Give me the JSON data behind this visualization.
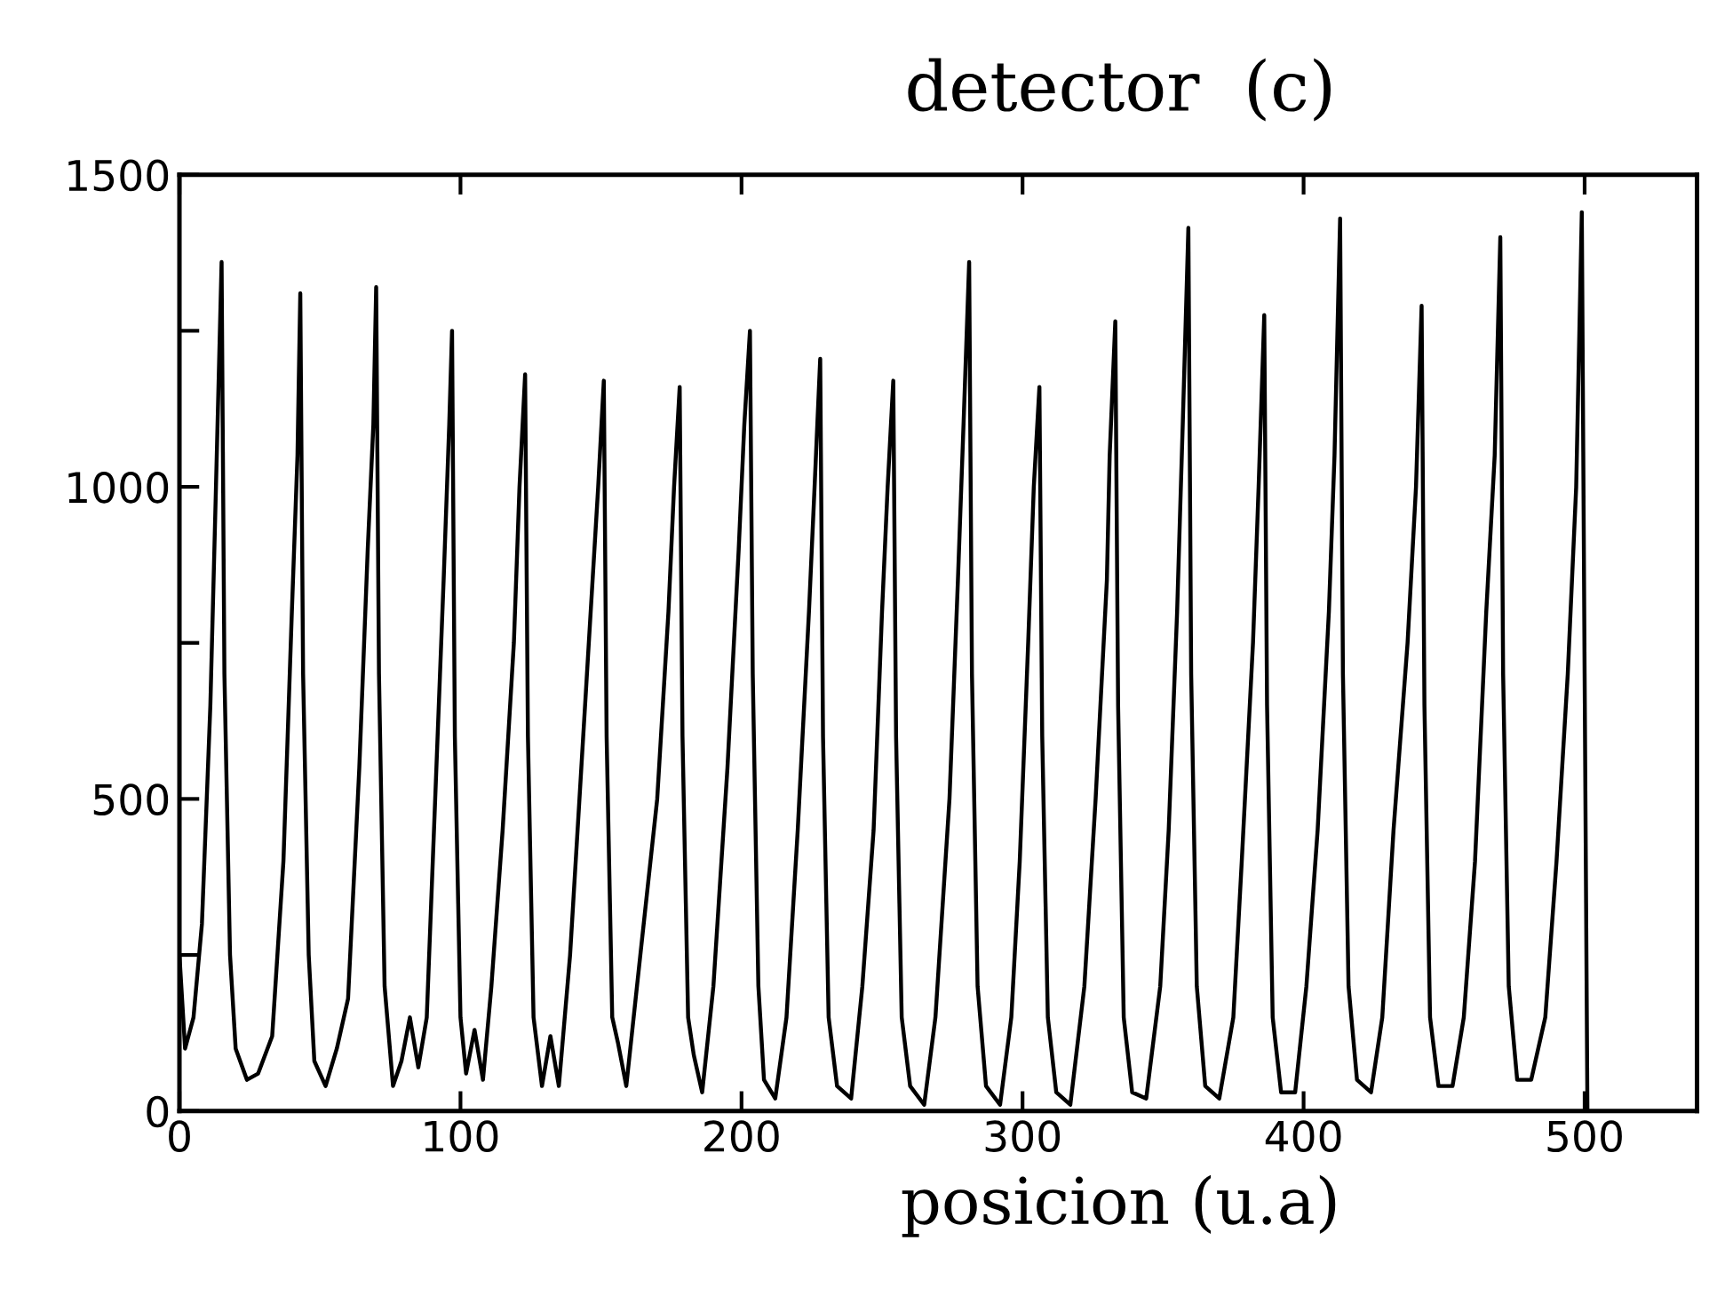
{
  "chart_data": {
    "type": "line",
    "title": "detector  (c)",
    "xlabel": "posicion (u.a)",
    "xlim": [
      0,
      540
    ],
    "ylim": [
      0,
      1500
    ],
    "xticks": [
      0,
      100,
      200,
      300,
      400,
      500
    ],
    "yticks": [
      0,
      {
        "value": 250,
        "label": null
      },
      500,
      {
        "value": 750,
        "label": null
      },
      1000,
      {
        "value": 1250,
        "label": null
      },
      1500
    ],
    "grid": false,
    "legend": false,
    "marker": "none",
    "line_style": "solid",
    "series": [
      {
        "color": "#000000",
        "x": [
          0,
          2,
          5,
          8,
          11,
          13,
          15,
          16,
          18,
          20,
          24,
          28,
          33,
          37,
          40,
          42,
          43,
          44,
          46,
          48,
          52,
          56,
          60,
          64,
          67,
          69,
          70,
          71,
          73,
          76,
          79,
          82,
          85,
          88,
          91,
          94,
          96,
          97,
          98,
          100,
          102,
          105,
          108,
          111,
          115,
          119,
          121,
          123,
          124,
          126,
          129,
          132,
          135,
          139,
          143,
          147,
          149,
          151,
          152,
          154,
          156,
          159,
          164,
          170,
          174,
          176,
          178,
          179,
          181,
          183,
          186,
          190,
          195,
          199,
          201,
          203,
          204,
          206,
          208,
          212,
          216,
          220,
          224,
          226,
          228,
          229,
          231,
          234,
          239,
          243,
          247,
          250,
          252,
          254,
          255,
          257,
          260,
          265,
          269,
          274,
          277,
          279,
          281,
          282,
          284,
          287,
          292,
          296,
          299,
          302,
          304,
          306,
          307,
          309,
          312,
          317,
          322,
          326,
          330,
          331,
          333,
          334,
          336,
          339,
          344,
          349,
          352,
          355,
          357,
          359,
          360,
          362,
          365,
          370,
          375,
          378,
          382,
          384,
          386,
          387,
          389,
          392,
          397,
          401,
          405,
          409,
          411,
          413,
          414,
          416,
          419,
          424,
          428,
          432,
          437,
          440,
          442,
          443,
          445,
          448,
          453,
          457,
          461,
          465,
          468,
          470,
          471,
          473,
          476,
          481,
          486,
          490,
          494,
          497,
          499,
          500,
          501
        ],
        "values": [
          250,
          100,
          150,
          300,
          650,
          1000,
          1360,
          700,
          250,
          100,
          50,
          60,
          120,
          400,
          800,
          1050,
          1310,
          700,
          250,
          80,
          40,
          100,
          180,
          550,
          900,
          1100,
          1320,
          700,
          200,
          40,
          80,
          150,
          70,
          150,
          500,
          850,
          1100,
          1250,
          600,
          150,
          60,
          130,
          50,
          200,
          450,
          750,
          1000,
          1180,
          600,
          150,
          40,
          120,
          40,
          250,
          550,
          850,
          1000,
          1170,
          600,
          150,
          110,
          40,
          250,
          500,
          800,
          1000,
          1160,
          600,
          150,
          90,
          30,
          200,
          550,
          900,
          1100,
          1250,
          700,
          200,
          50,
          20,
          150,
          450,
          800,
          1000,
          1205,
          600,
          150,
          40,
          20,
          200,
          450,
          800,
          1000,
          1170,
          600,
          150,
          40,
          10,
          150,
          500,
          850,
          1100,
          1360,
          700,
          200,
          40,
          10,
          150,
          400,
          750,
          1000,
          1160,
          600,
          150,
          30,
          10,
          200,
          500,
          850,
          1050,
          1265,
          650,
          150,
          30,
          20,
          200,
          450,
          800,
          1100,
          1415,
          700,
          200,
          40,
          20,
          150,
          400,
          750,
          1000,
          1275,
          650,
          150,
          30,
          30,
          200,
          450,
          800,
          1050,
          1430,
          700,
          200,
          50,
          30,
          150,
          450,
          750,
          1000,
          1290,
          650,
          150,
          40,
          40,
          150,
          400,
          800,
          1050,
          1400,
          700,
          200,
          50,
          50,
          150,
          400,
          700,
          1000,
          1440,
          700,
          0
        ]
      }
    ]
  }
}
